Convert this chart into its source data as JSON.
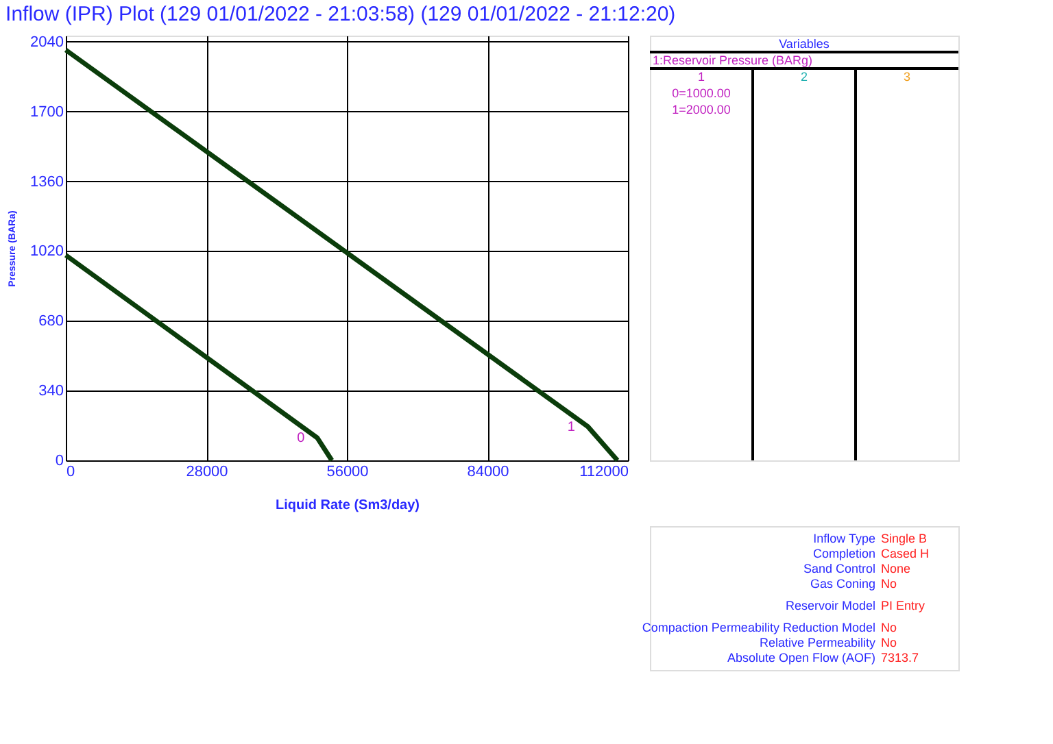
{
  "chart_data": [
    {
      "type": "line",
      "title": "Inflow (IPR) Plot (129 01/01/2022 - 21:03:58) (129 01/01/2022 - 21:12:20)",
      "xlabel": "Liquid Rate  (Sm3/day)",
      "ylabel": "Pressure (BARa)",
      "series": [
        {
          "name": "0",
          "color": "#0b3d0b",
          "x": [
            0,
            50100,
            53000
          ],
          "values": [
            1000,
            110,
            0
          ]
        },
        {
          "name": "1",
          "color": "#0b3d0b",
          "x": [
            0,
            104000,
            109900
          ],
          "values": [
            2000,
            165,
            0
          ]
        }
      ],
      "xlim": [
        0,
        112000
      ],
      "xticks": [
        0,
        28000,
        56000,
        84000,
        112000
      ],
      "ylim": [
        0,
        2070
      ],
      "yticks": [
        0,
        340,
        680,
        1020,
        1360,
        1700,
        2040
      ],
      "grid": true,
      "legend": false,
      "marker": "none",
      "line_style": "solid"
    },
    {
      "type": "other",
      "title": "Variables",
      "annotations": [
        "1:Reservoir Pressure (BARg)",
        "1",
        "2",
        "3",
        "0=1000.00",
        "1=2000.00"
      ]
    },
    {
      "type": "other",
      "annotations": [
        "Inflow Type",
        "Single B",
        "Completion",
        "Cased H",
        "Sand Control",
        "None",
        "Gas Coning",
        "No",
        "Reservoir Model",
        "PI Entry",
        "Compaction Permeability Reduction Model",
        "No",
        "Relative Permeability",
        "No",
        "Absolute Open Flow (AOF)",
        "7313.7"
      ]
    }
  ]
}
